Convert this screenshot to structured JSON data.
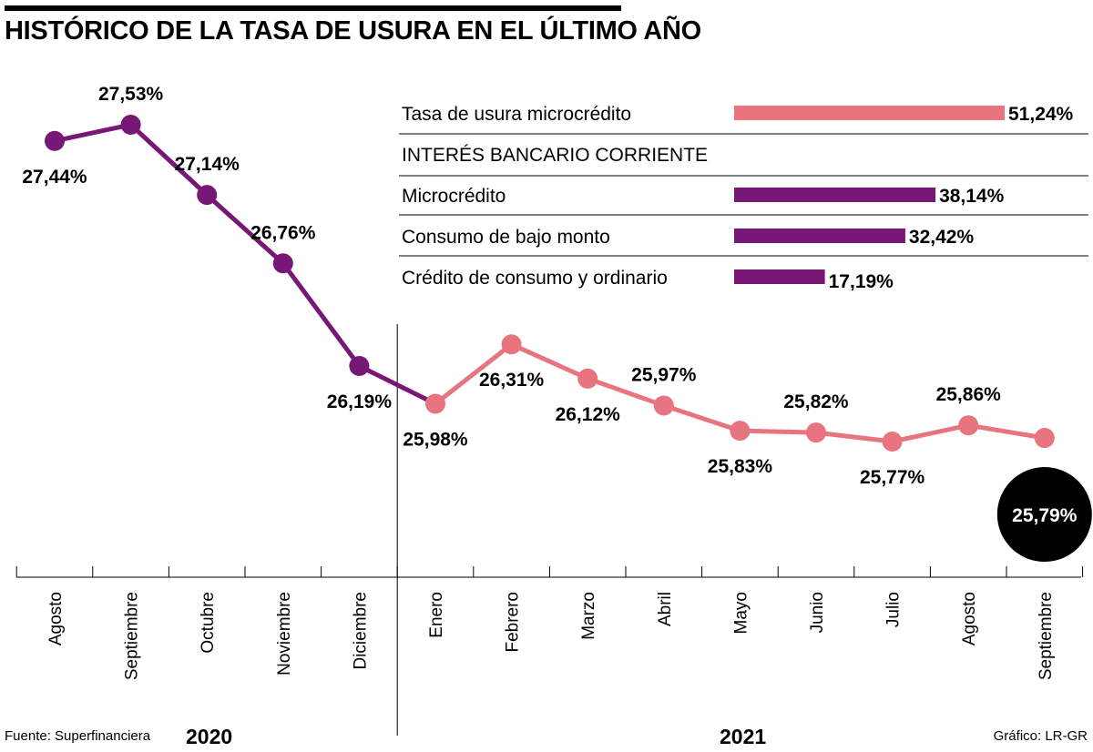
{
  "title": "HISTÓRICO DE LA TASA DE USURA EN EL ÚLTIMO AÑO",
  "footer": {
    "source": "Fuente: Superfinanciera",
    "credit": "Gráfico: LR-GR"
  },
  "years": [
    "2020",
    "2021"
  ],
  "colors": {
    "year2020": "#771776",
    "year2021": "#e7747f",
    "highlight": "#000000",
    "text": "#000000"
  },
  "chart_data": [
    {
      "type": "line",
      "title": "HISTÓRICO DE LA TASA DE USURA EN EL ÚLTIMO AÑO",
      "xlabel": "",
      "ylabel": "",
      "ylim": [
        25.5,
        27.8
      ],
      "grid": false,
      "categories": [
        "Agosto",
        "Septiembre",
        "Octubre",
        "Noviembre",
        "Diciembre",
        "Enero",
        "Febrero",
        "Marzo",
        "Abril",
        "Mayo",
        "Junio",
        "Julio",
        "Agosto",
        "Septiembre"
      ],
      "groups": [
        {
          "year": "2020",
          "categories": [
            "Agosto",
            "Septiembre",
            "Octubre",
            "Noviembre",
            "Diciembre"
          ]
        },
        {
          "year": "2021",
          "categories": [
            "Enero",
            "Febrero",
            "Marzo",
            "Abril",
            "Mayo",
            "Junio",
            "Julio",
            "Agosto",
            "Septiembre"
          ]
        }
      ],
      "values": [
        27.44,
        27.53,
        27.14,
        26.76,
        26.19,
        25.98,
        26.31,
        26.12,
        25.97,
        25.83,
        25.82,
        25.77,
        25.86,
        25.79
      ],
      "labels": [
        "27,44%",
        "27,53%",
        "27,14%",
        "26,76%",
        "26,19%",
        "25,98%",
        "26,31%",
        "26,12%",
        "25,97%",
        "25,83%",
        "25,82%",
        "25,77%",
        "25,86%",
        "25,79%"
      ],
      "label_positions": [
        "below",
        "above",
        "above",
        "above",
        "below",
        "below",
        "below",
        "below",
        "above",
        "below",
        "above",
        "below",
        "above",
        "highlight"
      ],
      "highlight_index": 13
    },
    {
      "type": "bar",
      "orientation": "horizontal",
      "xlim": [
        0,
        51.24
      ],
      "groups": [
        {
          "heading": "",
          "items": [
            {
              "label": "Tasa de usura microcrédito",
              "value": 51.24,
              "value_label": "51,24%",
              "color": "#e7747f"
            }
          ]
        },
        {
          "heading": "INTERÉS BANCARIO CORRIENTE",
          "items": [
            {
              "label": "Microcrédito",
              "value": 38.14,
              "value_label": "38,14%",
              "color": "#771776"
            },
            {
              "label": "Consumo de bajo monto",
              "value": 32.42,
              "value_label": "32,42%",
              "color": "#771776"
            },
            {
              "label": "Crédito de consumo y ordinario",
              "value": 17.19,
              "value_label": "17,19%",
              "color": "#771776"
            }
          ]
        }
      ]
    }
  ]
}
